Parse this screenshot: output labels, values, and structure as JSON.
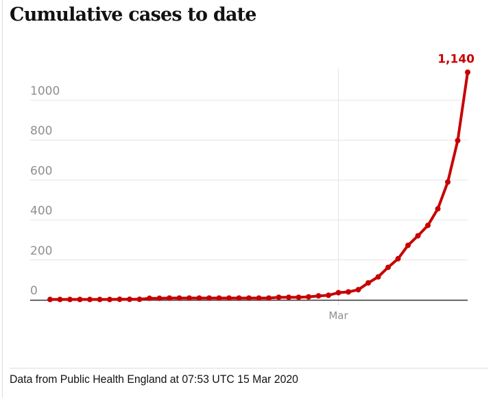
{
  "chart_data": {
    "type": "line",
    "title": "Cumulative cases to date",
    "xlabel": "",
    "ylabel": "",
    "ylim": [
      0,
      1000
    ],
    "yticks": [
      0,
      200,
      400,
      600,
      800,
      1000
    ],
    "ytick_labels": [
      "0",
      "200",
      "400",
      "600",
      "800",
      "1000"
    ],
    "grid": true,
    "x_tick_labels": [
      {
        "index": 29,
        "label": "Mar"
      }
    ],
    "x_start": "31 Jan 2020",
    "x_end": "14 Mar 2020",
    "series": [
      {
        "name": "Cumulative cases",
        "color": "#c70000",
        "values": [
          2,
          2,
          2,
          2,
          2,
          2,
          2,
          3,
          3,
          3,
          8,
          8,
          9,
          9,
          9,
          9,
          9,
          9,
          9,
          9,
          9,
          9,
          9,
          13,
          13,
          13,
          15,
          20,
          23,
          36,
          40,
          51,
          85,
          115,
          163,
          206,
          273,
          321,
          373,
          456,
          590,
          798,
          1140
        ]
      }
    ],
    "annotations": [
      {
        "type": "last-value",
        "label": "1,140"
      }
    ]
  },
  "footer": {
    "source": "Data from Public Health England at 07:53 UTC 15 Mar 2020"
  }
}
